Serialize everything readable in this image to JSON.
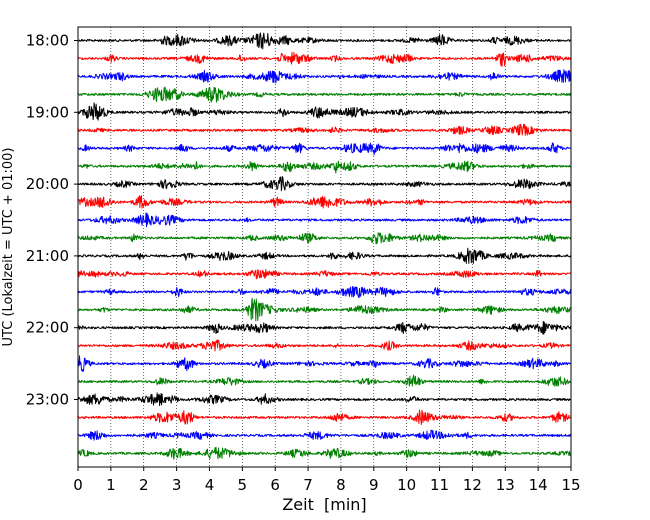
{
  "chart_data": {
    "type": "line",
    "title": "",
    "xlabel": "Zeit  [min]",
    "ylabel": "UTC (Lokalzeit = UTC + 01:00)",
    "xlim": [
      0,
      15
    ],
    "x_ticks": [
      "0",
      "1",
      "2",
      "3",
      "4",
      "5",
      "6",
      "7",
      "8",
      "9",
      "10",
      "11",
      "12",
      "13",
      "14",
      "15"
    ],
    "y_ticks": [
      "18:00",
      "19:00",
      "20:00",
      "21:00",
      "22:00",
      "23:00"
    ],
    "grid": "vertical dotted lines at each minute",
    "trace_colors": [
      "#000000",
      "#ff0000",
      "#0000ff",
      "#007f00"
    ],
    "traces_per_hour": 4,
    "trace_length_min": 15,
    "trace_count": 24,
    "time_range_utc": [
      "18:00",
      "23:45"
    ]
  }
}
